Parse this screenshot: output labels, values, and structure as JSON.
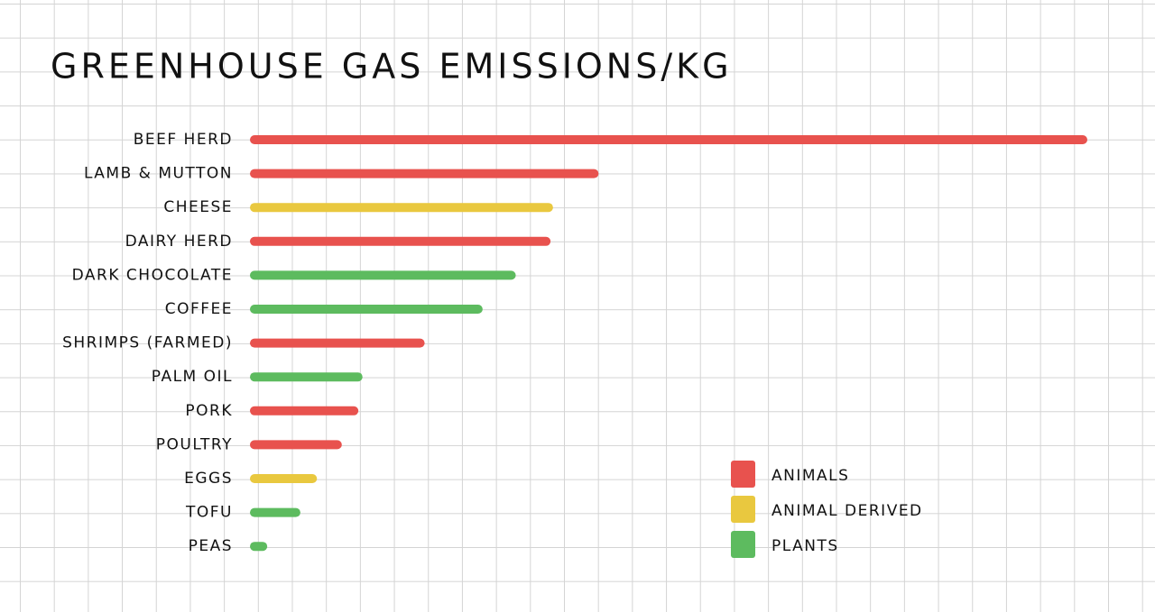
{
  "chart_data": {
    "type": "bar",
    "orientation": "horizontal",
    "title": "GREENHOUSE GAS EMISSIONS/KG",
    "categories": [
      "BEEF HERD",
      "LAMB & MUTTON",
      "CHEESE",
      "DAIRY HERD",
      "DARK CHOCOLATE",
      "COFFEE",
      "SHRIMPS (FARMED)",
      "PALM OIL",
      "PORK",
      "POULTRY",
      "EGGS",
      "TOFU",
      "PEAS"
    ],
    "series": [
      {
        "name": "ANIMALS",
        "color": "#e8524e",
        "values": [
          100,
          41,
          null,
          35.2,
          null,
          null,
          20,
          null,
          12,
          10,
          null,
          null,
          null
        ]
      },
      {
        "name": "ANIMAL DERIVED",
        "color": "#e9c83f",
        "values": [
          null,
          null,
          35.5,
          null,
          null,
          null,
          null,
          null,
          null,
          null,
          7,
          null,
          null
        ]
      },
      {
        "name": "PLANTS",
        "color": "#5dbb5f",
        "values": [
          null,
          null,
          null,
          null,
          31,
          27,
          null,
          12.5,
          null,
          null,
          null,
          5,
          1
        ]
      }
    ],
    "xlim": [
      0,
      100
    ],
    "legend": "bottom-right"
  }
}
